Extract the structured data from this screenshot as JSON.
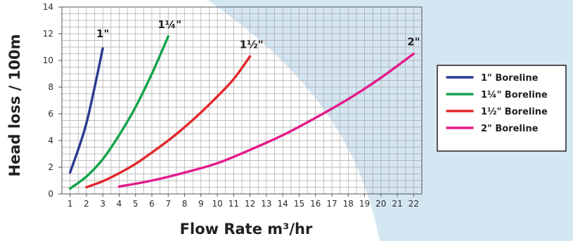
{
  "chart_data": {
    "type": "line",
    "xlabel": "Flow Rate m³/hr",
    "ylabel": "Head loss / 100m",
    "xlim": [
      0.5,
      22.5
    ],
    "ylim": [
      0,
      14
    ],
    "x_ticks": [
      "1",
      "2",
      "3",
      "4",
      "5",
      "6",
      "7",
      "8",
      "9",
      "10",
      "11",
      "12",
      "13",
      "14",
      "15",
      "16",
      "17",
      "18",
      "19",
      "20",
      "21",
      "22"
    ],
    "y_ticks": [
      "0",
      "2",
      "4",
      "6",
      "8",
      "10",
      "12",
      "14"
    ],
    "grid": true,
    "legend_position": "right",
    "series": [
      {
        "name": "1\" Boreline",
        "end_label": "1\"",
        "color": "#2b3a8f",
        "points": [
          [
            1.0,
            1.6
          ],
          [
            2.0,
            5.3
          ],
          [
            3.0,
            10.9
          ]
        ]
      },
      {
        "name": "1¼\"  Boreline",
        "end_label": "1¼\"",
        "color": "#13a24a",
        "points": [
          [
            1.0,
            0.4
          ],
          [
            2.0,
            1.3
          ],
          [
            3.0,
            2.6
          ],
          [
            4.0,
            4.4
          ],
          [
            5.0,
            6.5
          ],
          [
            6.0,
            9.0
          ],
          [
            7.0,
            11.8
          ]
        ]
      },
      {
        "name": "1½\"  Boreline",
        "end_label": "1½\"",
        "color": "#e3262a",
        "points": [
          [
            2.0,
            0.5
          ],
          [
            3.0,
            0.95
          ],
          [
            4.0,
            1.55
          ],
          [
            5.0,
            2.25
          ],
          [
            6.0,
            3.1
          ],
          [
            7.0,
            4.0
          ],
          [
            8.0,
            5.0
          ],
          [
            9.0,
            6.1
          ],
          [
            10.0,
            7.3
          ],
          [
            11.0,
            8.6
          ],
          [
            12.0,
            10.3
          ]
        ]
      },
      {
        "name": "2\" Boreline",
        "end_label": "2\"",
        "color": "#e5198a",
        "points": [
          [
            4.0,
            0.55
          ],
          [
            6.0,
            1.0
          ],
          [
            8.0,
            1.6
          ],
          [
            10.0,
            2.3
          ],
          [
            12.0,
            3.3
          ],
          [
            14.0,
            4.4
          ],
          [
            16.0,
            5.7
          ],
          [
            18.0,
            7.1
          ],
          [
            20.0,
            8.7
          ],
          [
            22.0,
            10.5
          ]
        ]
      }
    ]
  },
  "colors": {
    "background_shape": "#d4e6f2",
    "grid_line": "#a8a8a8",
    "axis_text": "#231f20"
  }
}
